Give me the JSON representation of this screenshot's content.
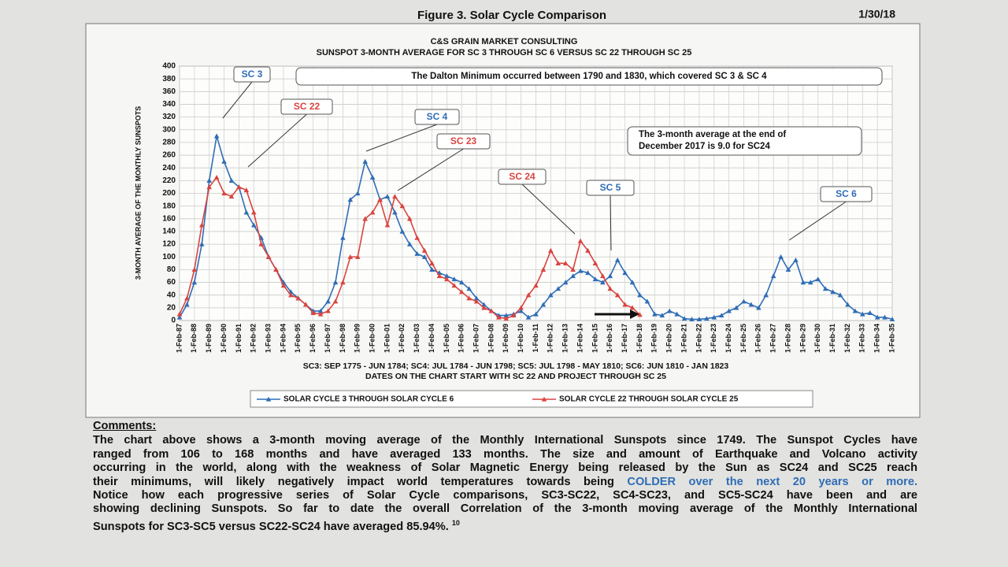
{
  "header": {
    "title": "Figure 3.  Solar Cycle Comparison",
    "date": "1/30/18"
  },
  "chart_data": {
    "type": "line",
    "title": "C&S GRAIN MARKET CONSULTING",
    "subtitle": "SUNSPOT 3-MONTH AVERAGE FOR SC 3 THROUGH SC 6 VERSUS SC 22 THROUGH SC 25",
    "y_label": "3-MONTH AVERAGE OF THE MONTHLY SUNSPOTS",
    "notes": [
      "SC3: SEP 1775 - JUN 1784; SC4: JUL 1784 - JUN 1798; SC5: JUL 1798 - MAY 1810; SC6: JUN 1810 - JAN 1823",
      "DATES ON THE CHART START WITH SC 22 AND PROJECT THROUGH SC 25"
    ],
    "annotations": [
      "The Dalton Minimum occurred between 1790 and 1830, which covered SC 3 & SC 4",
      "The 3-month average at the end of",
      "December 2017 is 9.0 for SC24"
    ],
    "callouts": [
      "SC 3",
      "SC 22",
      "SC 4",
      "SC 23",
      "SC 24",
      "SC 5",
      "SC 6"
    ],
    "categories": [
      "1-Feb-87",
      null,
      "1-Feb-88",
      null,
      "1-Feb-89",
      null,
      "1-Feb-90",
      null,
      "1-Feb-91",
      null,
      "1-Feb-92",
      null,
      "1-Feb-93",
      null,
      "1-Feb-94",
      null,
      "1-Feb-95",
      null,
      "1-Feb-96",
      null,
      "1-Feb-97",
      null,
      "1-Feb-98",
      null,
      "1-Feb-99",
      null,
      "1-Feb-00",
      null,
      "1-Feb-01",
      null,
      "1-Feb-02",
      null,
      "1-Feb-03",
      null,
      "1-Feb-04",
      null,
      "1-Feb-05",
      null,
      "1-Feb-06",
      null,
      "1-Feb-07",
      null,
      "1-Feb-08",
      null,
      "1-Feb-09",
      null,
      "1-Feb-10",
      null,
      "1-Feb-11",
      null,
      "1-Feb-12",
      null,
      "1-Feb-13",
      null,
      "1-Feb-14",
      null,
      "1-Feb-15",
      null,
      "1-Feb-16",
      null,
      "1-Feb-17",
      null,
      "1-Feb-18",
      null,
      "1-Feb-19",
      null,
      "1-Feb-20",
      null,
      "1-Feb-21",
      null,
      "1-Feb-22",
      null,
      "1-Feb-23",
      null,
      "1-Feb-24",
      null,
      "1-Feb-25",
      null,
      "1-Feb-26",
      null,
      "1-Feb-27",
      null,
      "1-Feb-28",
      null,
      "1-Feb-29",
      null,
      "1-Feb-30",
      null,
      "1-Feb-31",
      null,
      "1-Feb-32",
      null,
      "1-Feb-33",
      null,
      "1-Feb-34",
      null,
      "1-Feb-35"
    ],
    "series": [
      {
        "name": "SOLAR CYCLE 3 THROUGH SOLAR CYCLE 6",
        "color": "#2f6db5",
        "values": [
          5,
          25,
          60,
          120,
          220,
          290,
          250,
          220,
          210,
          170,
          150,
          130,
          100,
          80,
          60,
          45,
          35,
          25,
          15,
          15,
          30,
          60,
          130,
          190,
          200,
          250,
          225,
          190,
          195,
          170,
          140,
          120,
          105,
          100,
          80,
          75,
          70,
          65,
          60,
          50,
          35,
          25,
          15,
          8,
          8,
          10,
          15,
          5,
          10,
          25,
          40,
          50,
          60,
          70,
          78,
          75,
          65,
          60,
          70,
          95,
          75,
          60,
          40,
          30,
          10,
          8,
          15,
          10,
          3,
          2,
          2,
          3,
          5,
          8,
          15,
          20,
          30,
          25,
          20,
          40,
          70,
          100,
          80,
          95,
          60,
          60,
          65,
          50,
          45,
          40,
          25,
          15,
          10,
          12,
          5,
          5,
          2
        ]
      },
      {
        "name": "SOLAR CYCLE 22 THROUGH SOLAR CYCLE 25",
        "color": "#d9443f",
        "values": [
          10,
          35,
          80,
          150,
          210,
          225,
          200,
          195,
          210,
          205,
          170,
          120,
          100,
          80,
          55,
          40,
          35,
          25,
          12,
          10,
          15,
          30,
          60,
          100,
          100,
          160,
          170,
          190,
          150,
          195,
          180,
          160,
          130,
          110,
          90,
          70,
          65,
          55,
          45,
          35,
          30,
          20,
          15,
          5,
          3,
          8,
          20,
          40,
          55,
          80,
          110,
          90,
          90,
          80,
          125,
          110,
          90,
          70,
          50,
          40,
          25,
          20,
          9,
          null,
          null,
          null,
          null,
          null,
          null,
          null,
          null,
          null,
          null,
          null,
          null,
          null,
          null,
          null,
          null,
          null,
          null,
          null,
          null,
          null,
          null,
          null,
          null,
          null,
          null,
          null,
          null,
          null,
          null,
          null,
          null,
          null,
          null
        ]
      }
    ],
    "ylim": [
      0,
      400
    ],
    "yticks": [
      0,
      20,
      40,
      60,
      80,
      100,
      120,
      140,
      160,
      180,
      200,
      220,
      240,
      260,
      280,
      300,
      320,
      340,
      360,
      380,
      400
    ],
    "grid": true
  },
  "comments": {
    "heading": "Comments:",
    "lines": [
      "The chart above shows a 3-month moving average of the Monthly International Sunspots since 1749. The Sunspot Cycles have",
      "ranged from 106 to 168 months and have averaged 133 months. The size and amount of Earthquake and Volcano activity",
      "occurring in the world, along with the weakness of Solar Magnetic Energy being released by the Sun as SC24 and SC25 reach",
      {
        "text": "their minimums, will likely negatively impact world temperatures towards being ",
        "highlight": "COLDER over the next 20 years or more."
      },
      "Notice how each progressive series of Solar Cycle comparisons, SC3-SC22, SC4-SC23, and SC5-SC24 have been and are",
      "showing declining Sunspots. So far to date the overall Correlation of the 3-month moving average of the Monthly International",
      {
        "text": "Sunspots for SC3-SC5 versus SC22-SC24 have averaged 85.94%.",
        "footnote": "10"
      }
    ]
  }
}
